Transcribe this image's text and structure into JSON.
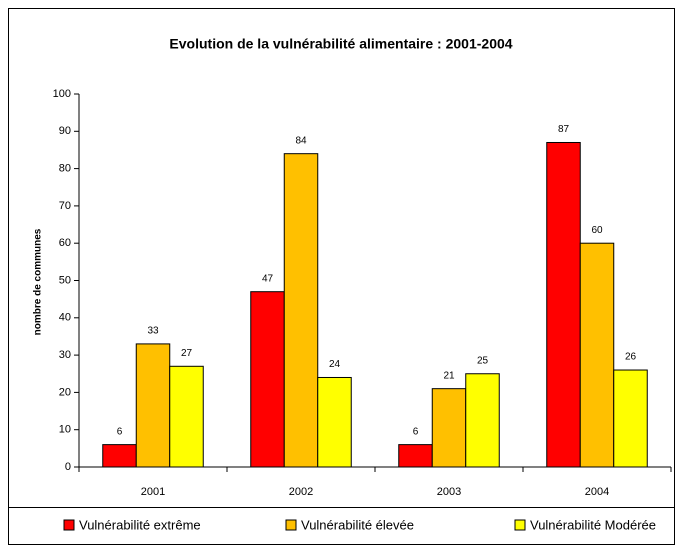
{
  "chart_data": {
    "type": "bar",
    "title": "Evolution de la vulnérabilité alimentaire : 2001-2004",
    "y_label": "nombre de communes",
    "categories": [
      "2001",
      "2002",
      "2003",
      "2004"
    ],
    "series": [
      {
        "name": "Vulnérabilité extrême",
        "color": "#ff0000",
        "values": [
          6,
          47,
          6,
          87
        ]
      },
      {
        "name": "Vulnérabilité élevée",
        "color": "#ffc000",
        "values": [
          33,
          84,
          21,
          60
        ]
      },
      {
        "name": "Vulnérabilité Modérée",
        "color": "#ffff00",
        "values": [
          27,
          24,
          25,
          26
        ]
      }
    ],
    "ylim": [
      0,
      100
    ],
    "yticks": [
      0,
      10,
      20,
      30,
      40,
      50,
      60,
      70,
      80,
      90,
      100
    ],
    "legend": "bottom"
  }
}
